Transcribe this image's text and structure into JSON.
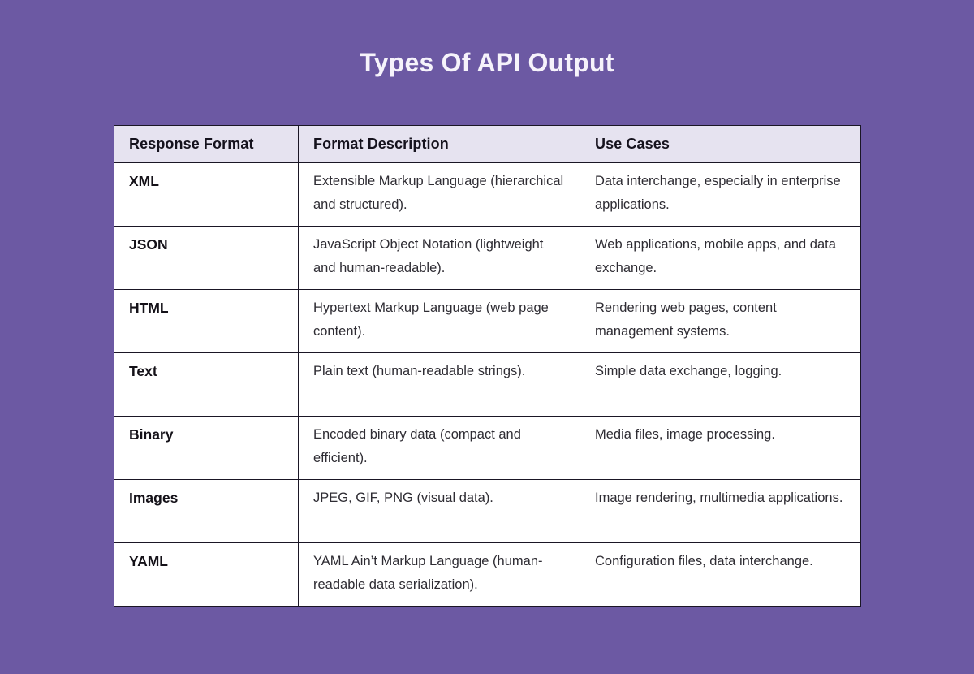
{
  "title": "Types Of API Output",
  "colors": {
    "background": "#6c59a3",
    "header_bg": "#e6e3f0",
    "border": "#1a1625",
    "title_text": "#f6f3fb",
    "body_text": "#2e2c33"
  },
  "chart_data": {
    "type": "table",
    "title": "Types Of API Output",
    "columns": [
      "Response Format",
      "Format Description",
      "Use Cases"
    ],
    "rows": [
      {
        "format": "XML",
        "description": "Extensible Markup Language (hierarchical and structured).",
        "use_cases": "Data interchange, especially in enterprise applications."
      },
      {
        "format": "JSON",
        "description": "JavaScript Object Notation (lightweight and human-readable).",
        "use_cases": "Web applications, mobile apps, and data exchange."
      },
      {
        "format": "HTML",
        "description": "Hypertext Markup Language (web page content).",
        "use_cases": "Rendering web pages, content management systems."
      },
      {
        "format": "Text",
        "description": "Plain text (human-readable strings).",
        "use_cases": "Simple data exchange, logging."
      },
      {
        "format": "Binary",
        "description": "Encoded binary data (compact and efficient).",
        "use_cases": "Media files, image processing."
      },
      {
        "format": "Images",
        "description": "JPEG, GIF, PNG (visual data).",
        "use_cases": "Image rendering, multimedia applications."
      },
      {
        "format": "YAML",
        "description": "YAML Ain’t Markup Language (human-readable data serialization).",
        "use_cases": "Configuration files, data interchange."
      }
    ]
  }
}
